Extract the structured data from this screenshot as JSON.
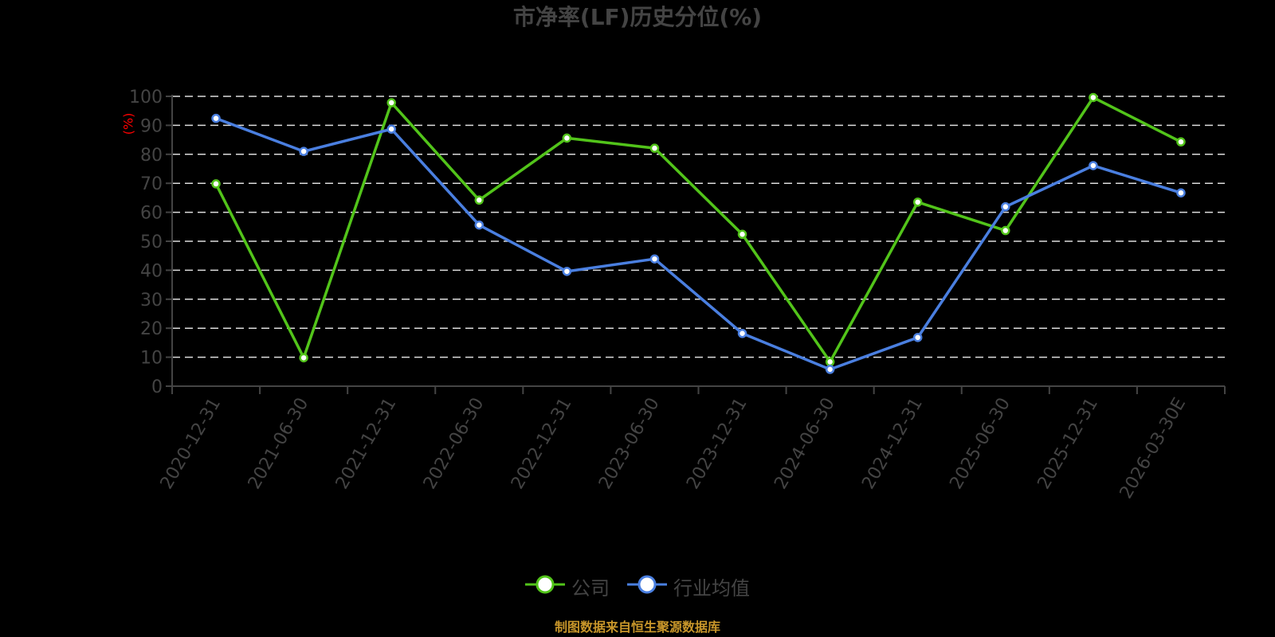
{
  "title": "市净率(LF)历史分位(%)",
  "footer": "制图数据来自恒生聚源数据库",
  "legend": [
    {
      "label": "公司",
      "color": "#52c41a",
      "icon": "circle-line-marker-icon"
    },
    {
      "label": "行业均值",
      "color": "#4a7fe0",
      "icon": "circle-line-marker-icon"
    }
  ],
  "colors": {
    "background": "#000000",
    "axis": "#444444",
    "grid": "#dddddd",
    "tick_label": "#444444",
    "unit_label": "#ff0000",
    "footer": "#c8962a",
    "company": "#52c41a",
    "industry": "#4a7fe0"
  },
  "chart_data": {
    "type": "line",
    "title": "市净率(LF)历史分位(%)",
    "xlabel": "",
    "ylabel": "(%)",
    "ylim": [
      0,
      100
    ],
    "yticks": [
      0,
      10,
      20,
      30,
      40,
      50,
      60,
      70,
      80,
      90,
      100
    ],
    "grid": true,
    "legend_position": "bottom",
    "categories": [
      "2020-12-31",
      "2021-06-30",
      "2021-12-31",
      "2022-06-30",
      "2022-12-31",
      "2023-06-30",
      "2023-12-31",
      "2024-06-30",
      "2024-12-31",
      "2025-06-30",
      "2025-12-31",
      "2026-03-30E"
    ],
    "series": [
      {
        "name": "公司",
        "color": "#52c41a",
        "values": [
          69.8,
          9.8,
          97.8,
          64.2,
          85.6,
          82.1,
          52.4,
          8.4,
          63.5,
          53.7,
          99.6,
          84.3
        ]
      },
      {
        "name": "行业均值",
        "color": "#4a7fe0",
        "values": [
          92.4,
          81.0,
          88.7,
          55.6,
          39.6,
          43.9,
          18.2,
          5.8,
          16.8,
          61.9,
          76.1,
          66.7
        ]
      }
    ]
  }
}
